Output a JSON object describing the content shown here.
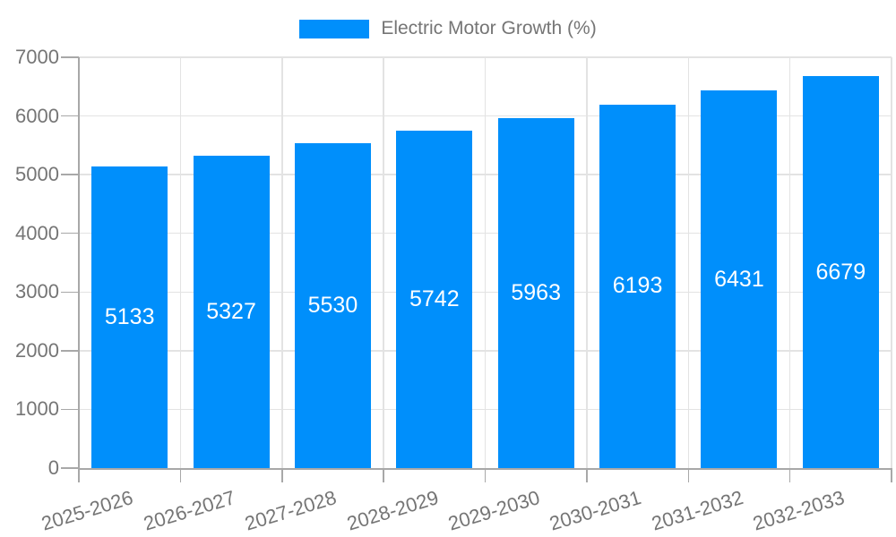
{
  "chart_data": {
    "type": "bar",
    "categories": [
      "2025-2026",
      "2026-2027",
      "2027-2028",
      "2028-2029",
      "2029-2030",
      "2030-2031",
      "2031-2032",
      "2032-2033"
    ],
    "series": [
      {
        "name": "Electric Motor Growth (%)",
        "values": [
          5133,
          5327,
          5530,
          5742,
          5963,
          6193,
          6431,
          6679
        ]
      }
    ],
    "title": "",
    "xlabel": "",
    "ylabel": "",
    "ylim": [
      0,
      7000
    ],
    "yticks": [
      0,
      1000,
      2000,
      3000,
      4000,
      5000,
      6000,
      7000
    ],
    "grid": "on",
    "legend": {
      "labels": [
        "Electric Motor Growth (%)"
      ],
      "position": "top-center"
    },
    "x_label_rotation_deg": -17,
    "value_labels_shown": true,
    "colors": {
      "bar": "#008FFB",
      "value_label": "#FFFFFF",
      "axis": "#A8A8A8",
      "gridline": "#E3E3E3",
      "tick_text": "#757575",
      "background": "#FFFFFF"
    }
  }
}
